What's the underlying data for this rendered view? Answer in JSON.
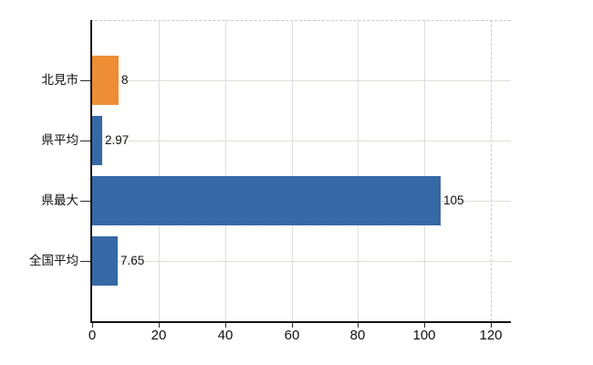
{
  "chart_data": {
    "type": "bar",
    "orientation": "horizontal",
    "title": "",
    "xlabel": "",
    "ylabel": "",
    "categories": [
      "北見市",
      "県平均",
      "県最大",
      "全国平均"
    ],
    "values": [
      8,
      2.97,
      105,
      7.65
    ],
    "value_labels": [
      "8",
      "2.97",
      "105",
      "7.65"
    ],
    "bar_colors": [
      "#f3953e",
      "#3e70ae",
      "#3e70ae",
      "#3e70ae"
    ],
    "bar_colors_alt": [
      "#e8862c",
      "#2e619e",
      "#2e619e",
      "#2e619e"
    ],
    "xticks": [
      "0",
      "20",
      "40",
      "60",
      "80",
      "100",
      "120"
    ],
    "xtick_values": [
      0,
      20,
      40,
      60,
      80,
      100,
      120
    ],
    "xlim": [
      0,
      126
    ],
    "grid": "on",
    "legend": "none"
  },
  "colors": {
    "background": "#ffffff",
    "axis": "#141414",
    "vertical_gridline": "#dedede",
    "horizontal_gridline": "#dce0d6",
    "dashed_border": "#c9c9c2",
    "accent_orange": "#f3953e",
    "accent_blue": "#3e70ae"
  }
}
